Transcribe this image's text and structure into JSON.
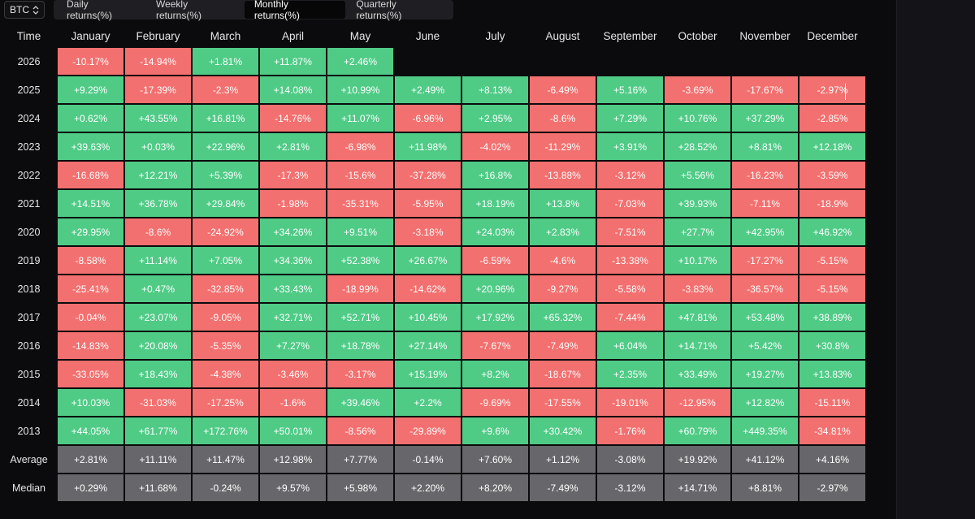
{
  "asset_select": {
    "value": "BTC"
  },
  "tabs": [
    {
      "label": "Daily returns(%)",
      "active": false
    },
    {
      "label": "Weekly returns(%)",
      "active": false
    },
    {
      "label": "Monthly returns(%)",
      "active": true
    },
    {
      "label": "Quarterly returns(%)",
      "active": false
    }
  ],
  "table": {
    "time_header": "Time",
    "months": [
      "January",
      "February",
      "March",
      "April",
      "May",
      "June",
      "July",
      "August",
      "September",
      "October",
      "November",
      "December"
    ],
    "rows": [
      {
        "year": "2026",
        "values": [
          "-10.17%",
          "-14.94%",
          "+1.81%",
          "+11.87%",
          "+2.46%",
          "",
          "",
          "",
          "",
          "",
          "",
          ""
        ]
      },
      {
        "year": "2025",
        "values": [
          "+9.29%",
          "-17.39%",
          "-2.3%",
          "+14.08%",
          "+10.99%",
          "+2.49%",
          "+8.13%",
          "-6.49%",
          "+5.16%",
          "-3.69%",
          "-17.67%",
          "-2.97%"
        ]
      },
      {
        "year": "2024",
        "values": [
          "+0.62%",
          "+43.55%",
          "+16.81%",
          "-14.76%",
          "+11.07%",
          "-6.96%",
          "+2.95%",
          "-8.6%",
          "+7.29%",
          "+10.76%",
          "+37.29%",
          "-2.85%"
        ]
      },
      {
        "year": "2023",
        "values": [
          "+39.63%",
          "+0.03%",
          "+22.96%",
          "+2.81%",
          "-6.98%",
          "+11.98%",
          "-4.02%",
          "-11.29%",
          "+3.91%",
          "+28.52%",
          "+8.81%",
          "+12.18%"
        ]
      },
      {
        "year": "2022",
        "values": [
          "-16.68%",
          "+12.21%",
          "+5.39%",
          "-17.3%",
          "-15.6%",
          "-37.28%",
          "+16.8%",
          "-13.88%",
          "-3.12%",
          "+5.56%",
          "-16.23%",
          "-3.59%"
        ]
      },
      {
        "year": "2021",
        "values": [
          "+14.51%",
          "+36.78%",
          "+29.84%",
          "-1.98%",
          "-35.31%",
          "-5.95%",
          "+18.19%",
          "+13.8%",
          "-7.03%",
          "+39.93%",
          "-7.11%",
          "-18.9%"
        ]
      },
      {
        "year": "2020",
        "values": [
          "+29.95%",
          "-8.6%",
          "-24.92%",
          "+34.26%",
          "+9.51%",
          "-3.18%",
          "+24.03%",
          "+2.83%",
          "-7.51%",
          "+27.7%",
          "+42.95%",
          "+46.92%"
        ]
      },
      {
        "year": "2019",
        "values": [
          "-8.58%",
          "+11.14%",
          "+7.05%",
          "+34.36%",
          "+52.38%",
          "+26.67%",
          "-6.59%",
          "-4.6%",
          "-13.38%",
          "+10.17%",
          "-17.27%",
          "-5.15%"
        ]
      },
      {
        "year": "2018",
        "values": [
          "-25.41%",
          "+0.47%",
          "-32.85%",
          "+33.43%",
          "-18.99%",
          "-14.62%",
          "+20.96%",
          "-9.27%",
          "-5.58%",
          "-3.83%",
          "-36.57%",
          "-5.15%"
        ]
      },
      {
        "year": "2017",
        "values": [
          "-0.04%",
          "+23.07%",
          "-9.05%",
          "+32.71%",
          "+52.71%",
          "+10.45%",
          "+17.92%",
          "+65.32%",
          "-7.44%",
          "+47.81%",
          "+53.48%",
          "+38.89%"
        ]
      },
      {
        "year": "2016",
        "values": [
          "-14.83%",
          "+20.08%",
          "-5.35%",
          "+7.27%",
          "+18.78%",
          "+27.14%",
          "-7.67%",
          "-7.49%",
          "+6.04%",
          "+14.71%",
          "+5.42%",
          "+30.8%"
        ]
      },
      {
        "year": "2015",
        "values": [
          "-33.05%",
          "+18.43%",
          "-4.38%",
          "-3.46%",
          "-3.17%",
          "+15.19%",
          "+8.2%",
          "-18.67%",
          "+2.35%",
          "+33.49%",
          "+19.27%",
          "+13.83%"
        ]
      },
      {
        "year": "2014",
        "values": [
          "+10.03%",
          "-31.03%",
          "-17.25%",
          "-1.6%",
          "+39.46%",
          "+2.2%",
          "-9.69%",
          "-17.55%",
          "-19.01%",
          "-12.95%",
          "+12.82%",
          "-15.11%"
        ]
      },
      {
        "year": "2013",
        "values": [
          "+44.05%",
          "+61.77%",
          "+172.76%",
          "+50.01%",
          "-8.56%",
          "-29.89%",
          "+9.6%",
          "+30.42%",
          "-1.76%",
          "+60.79%",
          "+449.35%",
          "-34.81%"
        ]
      }
    ],
    "summary_rows": [
      {
        "label": "Average",
        "values": [
          "+2.81%",
          "+11.11%",
          "+11.47%",
          "+12.98%",
          "+7.77%",
          "-0.14%",
          "+7.60%",
          "+1.12%",
          "-3.08%",
          "+19.92%",
          "+41.12%",
          "+4.16%"
        ]
      },
      {
        "label": "Median",
        "values": [
          "+0.29%",
          "+11.68%",
          "-0.24%",
          "+9.57%",
          "+5.98%",
          "+2.20%",
          "+8.20%",
          "-7.49%",
          "-3.12%",
          "+14.71%",
          "+8.81%",
          "-2.97%"
        ]
      }
    ]
  },
  "colors": {
    "positive": "#4fcb86",
    "negative": "#f2706f",
    "summary": "#67676b",
    "background": "#0b0b0d"
  }
}
